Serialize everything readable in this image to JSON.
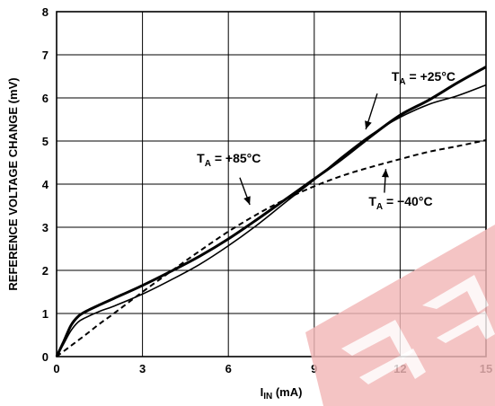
{
  "chart_data": {
    "type": "line",
    "xlabel": {
      "main": "I",
      "sub": "IN",
      "unit": " (mA)"
    },
    "ylabel": "REFERENCE VOLTAGE CHANGE (mV)",
    "xlim": [
      0,
      15
    ],
    "ylim": [
      0,
      8
    ],
    "xticks": [
      0,
      3,
      6,
      9,
      12,
      15
    ],
    "yticks": [
      0,
      1,
      2,
      3,
      4,
      5,
      6,
      7,
      8
    ],
    "grid": true,
    "series": [
      {
        "name": "T_A = +25°C",
        "label": {
          "main": "T",
          "sub": "A",
          "rest": " = +25°C"
        },
        "style": "thick-solid",
        "x": [
          0,
          0.25,
          0.5,
          0.75,
          1,
          1.5,
          2,
          3,
          4,
          5,
          6,
          7,
          8,
          9,
          10,
          11,
          12,
          13,
          14,
          15
        ],
        "y": [
          0,
          0.35,
          0.72,
          0.93,
          1.04,
          1.2,
          1.35,
          1.65,
          1.98,
          2.33,
          2.73,
          3.18,
          3.65,
          4.12,
          4.6,
          5.12,
          5.6,
          5.95,
          6.35,
          6.72
        ]
      },
      {
        "name": "T_A = +85°C",
        "label": {
          "main": "T",
          "sub": "A",
          "rest": " = +85°C"
        },
        "style": "thin-solid",
        "x": [
          0,
          0.25,
          0.5,
          0.75,
          1,
          1.5,
          2,
          3,
          4,
          5,
          6,
          7,
          8,
          9,
          10,
          11,
          12,
          13,
          14,
          15
        ],
        "y": [
          0,
          0.3,
          0.6,
          0.8,
          0.9,
          1.05,
          1.17,
          1.45,
          1.78,
          2.14,
          2.57,
          3.05,
          3.58,
          4.1,
          4.65,
          5.15,
          5.55,
          5.85,
          6.05,
          6.3
        ]
      },
      {
        "name": "T_A = −40°C",
        "label": {
          "main": "T",
          "sub": "A",
          "rest": " = −40°C"
        },
        "style": "dashed",
        "x": [
          0,
          0.5,
          1,
          1.5,
          2,
          3,
          4,
          5,
          6,
          7,
          8,
          9,
          10,
          11,
          12,
          13,
          14,
          15
        ],
        "y": [
          0,
          0.25,
          0.5,
          0.76,
          1.0,
          1.5,
          1.98,
          2.45,
          2.9,
          3.3,
          3.65,
          3.95,
          4.2,
          4.4,
          4.58,
          4.75,
          4.88,
          5.02
        ]
      }
    ],
    "annotations": [
      {
        "series": 0,
        "text_pos": [
          11.7,
          6.4
        ],
        "arrow_from": [
          11.2,
          6.1
        ],
        "arrow_to": [
          10.8,
          5.27
        ]
      },
      {
        "series": 1,
        "text_pos": [
          4.9,
          4.5
        ],
        "arrow_from": [
          6.4,
          4.15
        ],
        "arrow_to": [
          6.75,
          3.52
        ]
      },
      {
        "series": 2,
        "text_pos": [
          10.9,
          3.5
        ],
        "arrow_from": [
          11.45,
          3.8
        ],
        "arrow_to": [
          11.5,
          4.35
        ]
      }
    ]
  }
}
